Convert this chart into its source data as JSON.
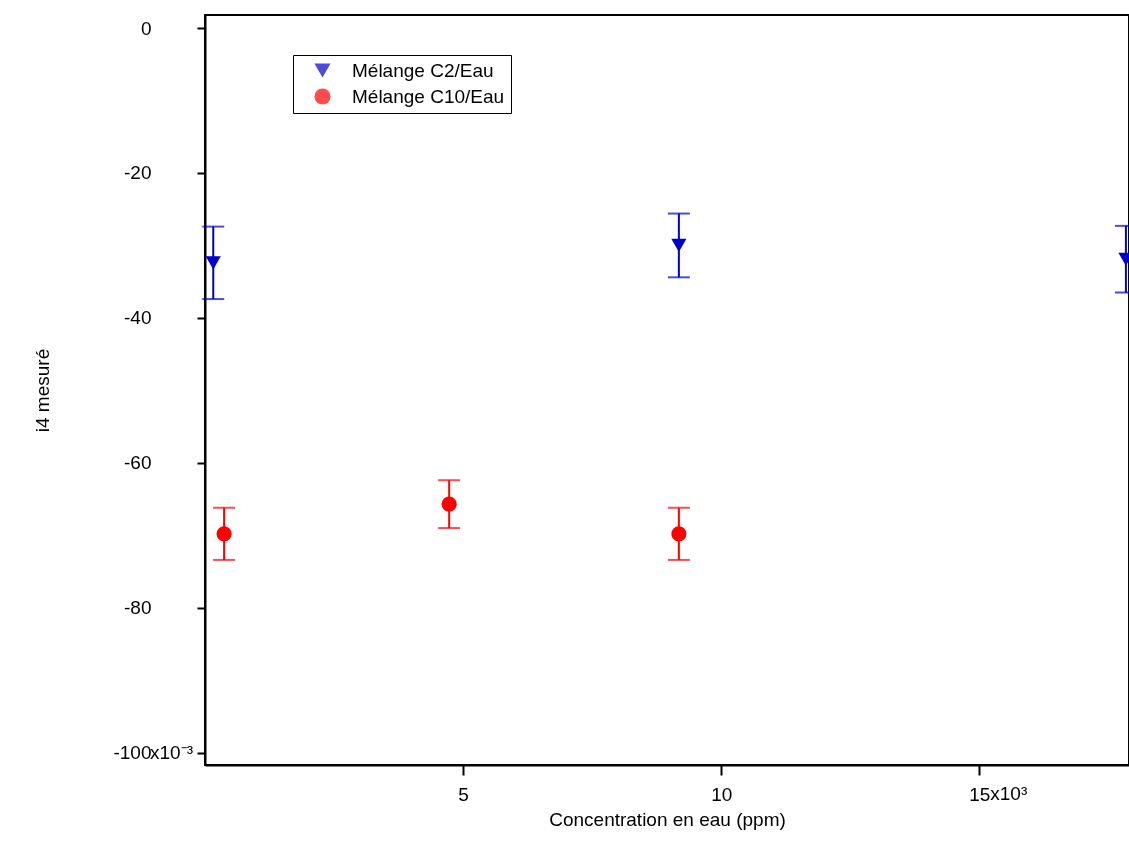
{
  "chart_data": {
    "type": "scatter",
    "xlabel": "Concentration en eau (ppm)",
    "ylabel": "i4 mesuré",
    "xlim": [
      0,
      17.9
    ],
    "xticks": [
      5,
      10,
      15
    ],
    "ylim": [
      -101.7,
      1.8
    ],
    "yticks": [
      0,
      -20,
      -40,
      -60,
      -80,
      -100
    ],
    "annotations": [
      "x10³",
      "x10⁻³"
    ],
    "grid": false,
    "legend": "top left",
    "series": [
      {
        "name": "Mélange C2/Eau",
        "color": "#0000cc",
        "marker": "triangle",
        "x": [
          0.16,
          9.18,
          17.84
        ],
        "values": [
          -32.4,
          -30,
          -31.9
        ],
        "errors": [
          5,
          4.4,
          4.6
        ]
      },
      {
        "name": "Mélange C10/Eau",
        "color": "#ff0000",
        "marker": "circle",
        "x": [
          0.37,
          4.73,
          9.18
        ],
        "values": [
          -69.8,
          -65.7,
          -69.8
        ],
        "errors": [
          3.6,
          3.3,
          3.6
        ]
      }
    ]
  }
}
